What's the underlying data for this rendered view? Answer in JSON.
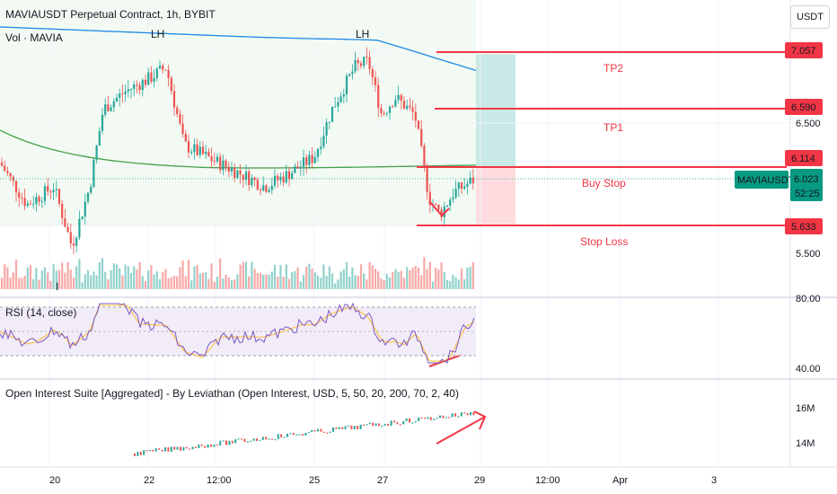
{
  "header": {
    "title": "MAVIAUSDT Perpetual Contract, 1h, BYBIT",
    "volume_label": "Vol · MAVIA",
    "currency_button": "USDT"
  },
  "annotations": {
    "lh1": "LH",
    "lh2": "LH",
    "tp2": "TP2",
    "tp1": "TP1",
    "buy_stop": "Buy Stop",
    "stop_loss": "Stop Loss",
    "left_marker": "I"
  },
  "price_axis": {
    "ticks": [
      "5.500",
      "6.500"
    ],
    "badges": {
      "tp2": "7.057",
      "tp1": "6.590",
      "buy_stop": "6.114",
      "current": "6.023",
      "countdown": "52:25",
      "stop_loss": "5.633"
    },
    "symbol_tag": "MAVIAUSDT.P"
  },
  "rsi_panel": {
    "title": "RSI (14, close)",
    "ticks": [
      "80.00",
      "40.00"
    ]
  },
  "oi_panel": {
    "title": "Open Interest Suite [Aggregated] - By Leviathan (Open Interest, USD, 5, 50, 20, 200, 70, 2, 40)",
    "ticks": [
      "16M",
      "14M"
    ]
  },
  "time_axis": {
    "labels": [
      "20",
      "22",
      "12:00",
      "25",
      "27",
      "29",
      "12:00",
      "Apr",
      "3"
    ]
  },
  "colors": {
    "up": "#26a69a",
    "down": "#ef5350",
    "level_line": "#f23645",
    "ma_blue": "#2962ff",
    "ma_green": "#43a047",
    "rsi_line": "#7e57c2",
    "rsi_ma": "#fbc02d",
    "rsi_band": "#ede7f6",
    "badge_red": "#f23645",
    "badge_teal": "#089981"
  },
  "chart_data": {
    "type": "candlestick",
    "symbol": "MAVIAUSDT",
    "levels": [
      {
        "name": "TP2",
        "value": 7.057
      },
      {
        "name": "TP1",
        "value": 6.59
      },
      {
        "name": "Buy Stop",
        "value": 6.114
      },
      {
        "name": "Stop Loss",
        "value": 5.633
      }
    ],
    "last_price": 6.023,
    "price_range": [
      5.4,
      7.3
    ],
    "rsi_ticks": [
      80,
      40
    ],
    "oi_ticks_millions": [
      16,
      14
    ],
    "grid": true
  }
}
